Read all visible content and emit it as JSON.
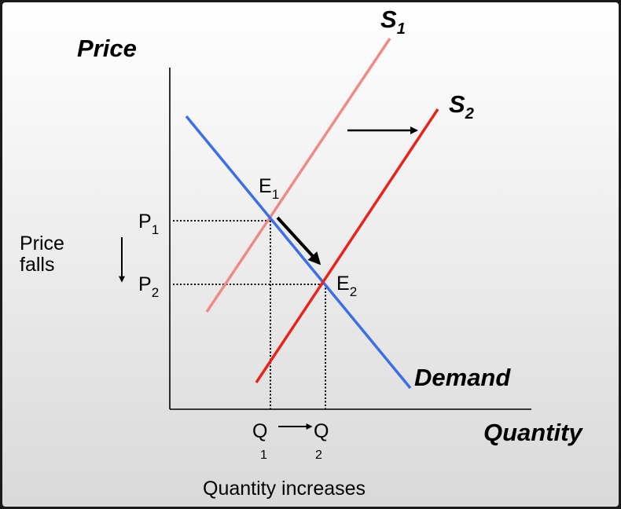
{
  "colors": {
    "background_top": "#ffffff",
    "background_bottom": "#d9d9d9",
    "frame": "#1a1a1a",
    "demand": "#3a6fe8",
    "supply_1": "#f08a84",
    "supply_2": "#e8231a",
    "axis": "#000000",
    "guide": "#000000",
    "arrow": "#000000"
  },
  "axis_labels": {
    "price": "Price",
    "quantity": "Quantity"
  },
  "curves": {
    "supply_1": {
      "letter": "S",
      "sub": "1"
    },
    "supply_2": {
      "letter": "S",
      "sub": "2"
    },
    "demand": "Demand"
  },
  "equilibria": {
    "e1": {
      "letter": "E",
      "sub": "1"
    },
    "e2": {
      "letter": "E",
      "sub": "2"
    }
  },
  "price_levels": {
    "p1": {
      "letter": "P",
      "sub": "1"
    },
    "p2": {
      "letter": "P",
      "sub": "2"
    }
  },
  "quantity_levels": {
    "q1": {
      "letter": "Q",
      "sub": "1"
    },
    "q2": {
      "letter": "Q",
      "sub": "2"
    }
  },
  "annotations": {
    "price_falls_line1": "Price",
    "price_falls_line2": "falls",
    "quantity_increases": "Quantity increases"
  }
}
